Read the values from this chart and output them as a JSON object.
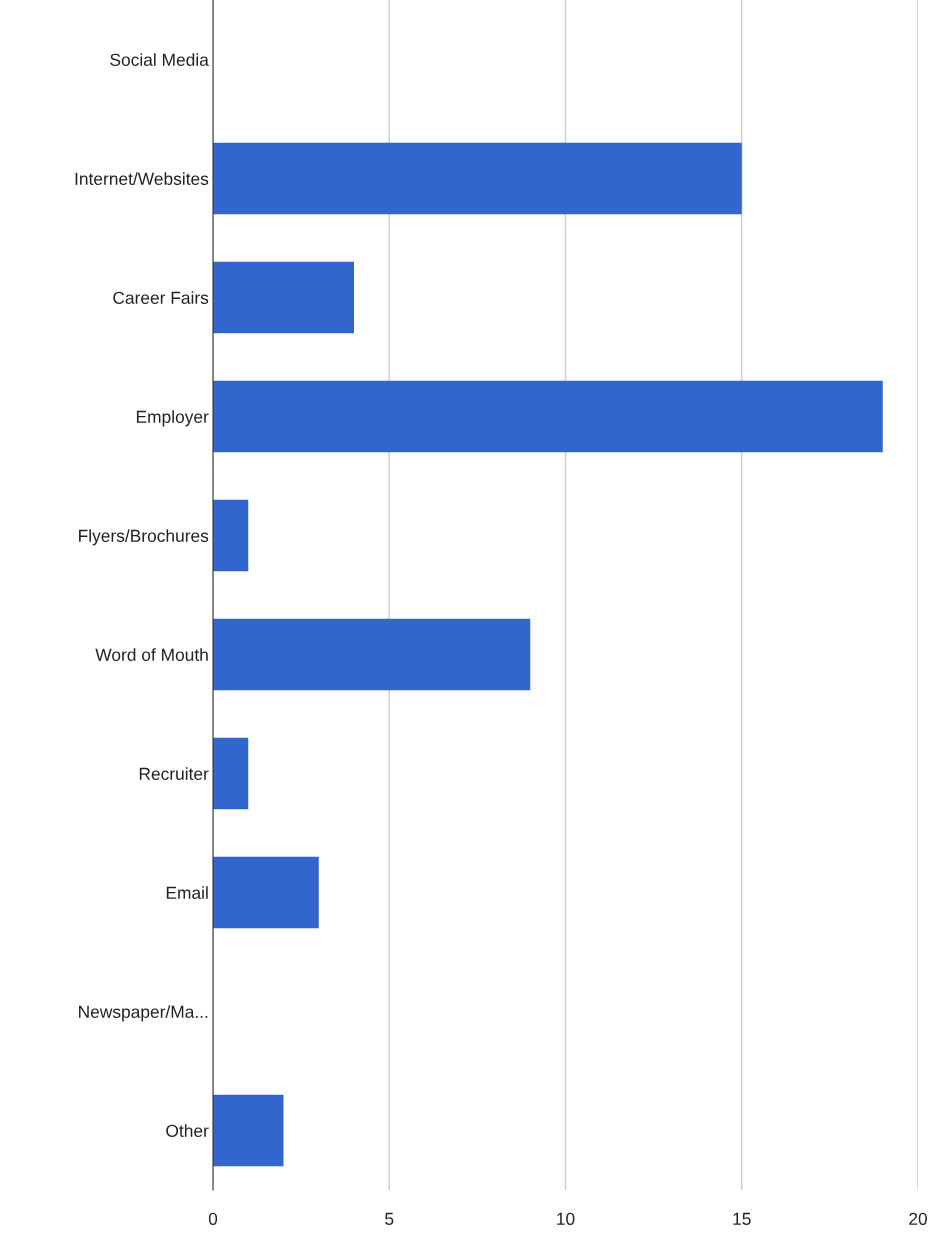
{
  "chart_data": {
    "type": "bar",
    "orientation": "horizontal",
    "categories": [
      "Social Media",
      "Internet/Websites",
      "Career Fairs",
      "Employer",
      "Flyers/Brochures",
      "Word of Mouth",
      "Recruiter",
      "Email",
      "Newspaper/Ma...",
      "Other"
    ],
    "values": [
      0,
      15,
      4,
      19,
      1,
      9,
      1,
      3,
      0,
      2
    ],
    "color": "#3366cc",
    "xlim": [
      0,
      20
    ],
    "xticks": [
      0,
      5,
      10,
      15,
      20
    ],
    "grid": "x"
  }
}
